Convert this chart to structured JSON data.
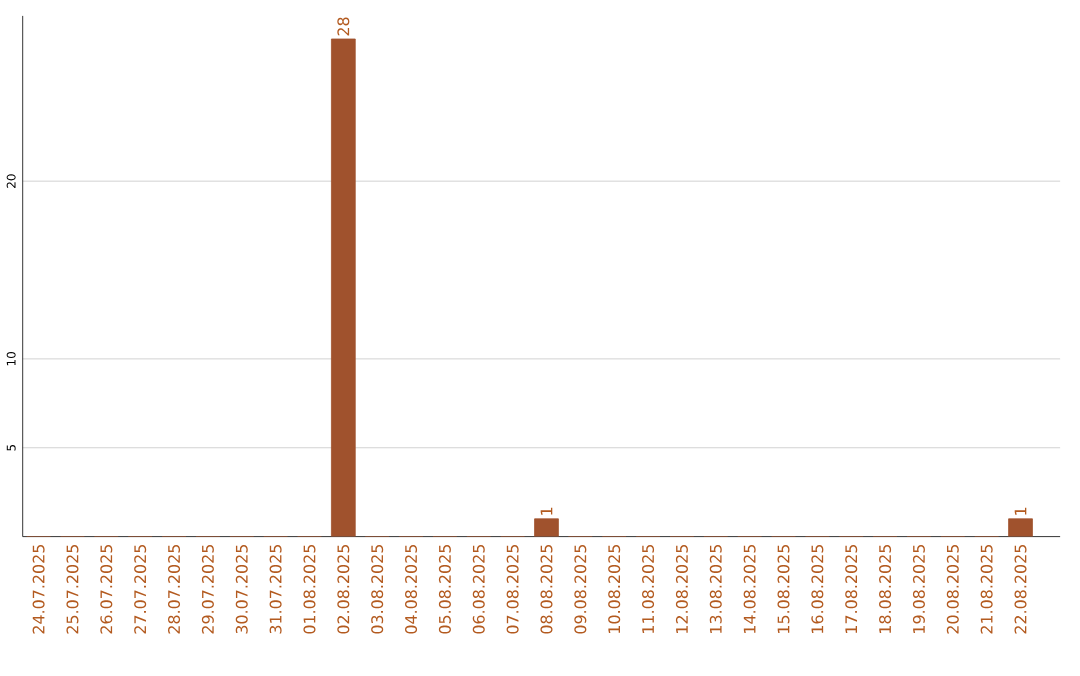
{
  "chart_data": {
    "type": "bar",
    "categories": [
      "24.07.2025",
      "25.07.2025",
      "26.07.2025",
      "27.07.2025",
      "28.07.2025",
      "29.07.2025",
      "30.07.2025",
      "31.07.2025",
      "01.08.2025",
      "02.08.2025",
      "03.08.2025",
      "04.08.2025",
      "05.08.2025",
      "06.08.2025",
      "07.08.2025",
      "08.08.2025",
      "09.08.2025",
      "10.08.2025",
      "11.08.2025",
      "12.08.2025",
      "13.08.2025",
      "14.08.2025",
      "15.08.2025",
      "16.08.2025",
      "17.08.2025",
      "18.08.2025",
      "19.08.2025",
      "20.08.2025",
      "21.08.2025",
      "22.08.2025"
    ],
    "values": [
      0,
      0,
      0,
      0,
      0,
      0,
      0,
      0,
      0,
      28,
      0,
      0,
      0,
      0,
      0,
      1,
      0,
      0,
      0,
      0,
      0,
      0,
      0,
      0,
      0,
      0,
      0,
      0,
      0,
      1
    ],
    "value_labels": [
      null,
      null,
      null,
      null,
      null,
      null,
      null,
      null,
      null,
      "28",
      null,
      null,
      null,
      null,
      null,
      "1",
      null,
      null,
      null,
      null,
      null,
      null,
      null,
      null,
      null,
      null,
      null,
      null,
      null,
      "1"
    ],
    "color": "#a0522d",
    "ylim": [
      0,
      29.3
    ],
    "yticks": [
      5,
      10,
      20
    ],
    "grid": "y"
  }
}
